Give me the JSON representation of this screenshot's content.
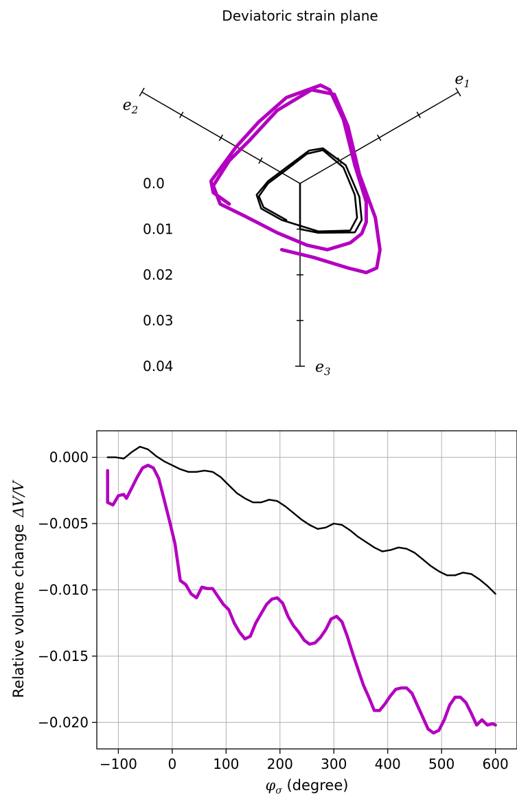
{
  "chart_data": [
    {
      "type": "line",
      "title": "Deviatoric strain plane",
      "axes": [
        {
          "name": "e1",
          "label": "e",
          "sub": "1"
        },
        {
          "name": "e2",
          "label": "e",
          "sub": "2"
        },
        {
          "name": "e3",
          "label": "e",
          "sub": "3"
        }
      ],
      "ticks": [
        "0.0",
        "0.01",
        "0.02",
        "0.03",
        "0.04"
      ],
      "series": [
        {
          "color": "#000000",
          "points": [
            [
              0.0,
              0.0
            ],
            [
              0.0,
              0.01
            ],
            [
              0.004,
              0.0108
            ],
            [
              0.012,
              0.0107
            ],
            [
              0.0135,
              0.008
            ],
            [
              0.013,
              0.003
            ],
            [
              0.01,
              -0.004
            ],
            [
              0.005,
              -0.0077
            ],
            [
              0.002,
              -0.0072
            ],
            [
              -0.003,
              -0.0035
            ],
            [
              -0.007,
              -0.0005
            ],
            [
              -0.0095,
              0.0025
            ],
            [
              -0.0085,
              0.0055
            ],
            [
              -0.004,
              0.008
            ],
            [
              0.004,
              0.0105
            ],
            [
              0.011,
              0.0103
            ],
            [
              0.0125,
              0.0075
            ],
            [
              0.012,
              0.0025
            ],
            [
              0.0095,
              -0.0035
            ],
            [
              0.005,
              -0.0073
            ],
            [
              0.0015,
              -0.0065
            ],
            [
              -0.003,
              -0.003
            ],
            [
              -0.007,
              0.0
            ],
            [
              -0.009,
              0.0028
            ],
            [
              -0.008,
              0.0052
            ],
            [
              -0.003,
              0.008
            ]
          ]
        },
        {
          "color": "#b300c0",
          "points": [
            [
              -0.0155,
              0.0045
            ],
            [
              -0.019,
              0.002
            ],
            [
              -0.0195,
              -0.0005
            ],
            [
              -0.014,
              -0.008
            ],
            [
              -0.009,
              -0.0135
            ],
            [
              -0.003,
              -0.0188
            ],
            [
              0.0045,
              -0.0215
            ],
            [
              0.0065,
              -0.0205
            ],
            [
              0.0095,
              -0.014
            ],
            [
              0.012,
              -0.004
            ],
            [
              0.0145,
              0.004
            ],
            [
              0.0145,
              0.0085
            ],
            [
              0.0135,
              0.011
            ],
            [
              0.011,
              0.013
            ],
            [
              0.006,
              0.0145
            ],
            [
              0.0015,
              0.0135
            ],
            [
              -0.005,
              0.0108
            ],
            [
              -0.012,
              0.0072
            ],
            [
              -0.0175,
              0.0045
            ],
            [
              -0.019,
              0.0005
            ],
            [
              -0.0155,
              -0.005
            ],
            [
              -0.011,
              -0.0095
            ],
            [
              -0.005,
              -0.016
            ],
            [
              0.0025,
              -0.0205
            ],
            [
              0.0075,
              -0.0195
            ],
            [
              0.0105,
              -0.0125
            ],
            [
              0.013,
              -0.002
            ],
            [
              0.0165,
              0.0075
            ],
            [
              0.0175,
              0.0145
            ],
            [
              0.0168,
              0.0185
            ],
            [
              0.0145,
              0.0195
            ],
            [
              0.0105,
              0.0185
            ],
            [
              0.003,
              0.0162
            ],
            [
              -0.004,
              0.0145
            ]
          ]
        }
      ]
    },
    {
      "type": "line",
      "title": "",
      "xlabel": "φ",
      "xlabel_sub": "σ",
      "xlabel_rest": " (degree)",
      "ylabel": "Relative volume change",
      "ylabel_math": "ΔV/V",
      "xlim": [
        -140,
        640
      ],
      "ylim": [
        -0.022,
        0.002
      ],
      "xticks": [
        -100,
        0,
        100,
        200,
        300,
        400,
        500,
        600
      ],
      "xtick_labels": [
        "−100",
        "0",
        "100",
        "200",
        "300",
        "400",
        "500",
        "600"
      ],
      "yticks": [
        0.0,
        -0.005,
        -0.01,
        -0.015,
        -0.02
      ],
      "ytick_labels": [
        "0.000",
        "−0.005",
        "−0.010",
        "−0.015",
        "−0.020"
      ],
      "grid": true,
      "series": [
        {
          "color": "#000000",
          "x": [
            -120,
            -105,
            -90,
            -75,
            -60,
            -45,
            -30,
            -15,
            0,
            15,
            30,
            45,
            60,
            75,
            90,
            105,
            120,
            135,
            150,
            165,
            180,
            195,
            210,
            225,
            240,
            255,
            270,
            285,
            300,
            315,
            330,
            345,
            360,
            375,
            390,
            405,
            420,
            435,
            450,
            465,
            480,
            495,
            510,
            525,
            540,
            555,
            570,
            585,
            600
          ],
          "y": [
            0.0,
            0.0,
            -0.0001,
            0.0004,
            0.0008,
            0.0006,
            0.0001,
            -0.0003,
            -0.0006,
            -0.0009,
            -0.0011,
            -0.0011,
            -0.001,
            -0.0011,
            -0.0015,
            -0.0021,
            -0.0027,
            -0.0031,
            -0.0034,
            -0.0034,
            -0.0032,
            -0.0033,
            -0.0037,
            -0.0042,
            -0.0047,
            -0.0051,
            -0.0054,
            -0.0053,
            -0.005,
            -0.0051,
            -0.0055,
            -0.006,
            -0.0064,
            -0.0068,
            -0.0071,
            -0.007,
            -0.0068,
            -0.0069,
            -0.0072,
            -0.0077,
            -0.0082,
            -0.0086,
            -0.0089,
            -0.0089,
            -0.0087,
            -0.0088,
            -0.0092,
            -0.0097,
            -0.0103
          ]
        },
        {
          "color": "#b300c0",
          "x": [
            -120,
            -120,
            -110,
            -100,
            -90,
            -85,
            -75,
            -65,
            -55,
            -45,
            -35,
            -25,
            -15,
            -5,
            5,
            15,
            25,
            35,
            45,
            55,
            65,
            75,
            85,
            95,
            105,
            115,
            125,
            135,
            145,
            155,
            165,
            175,
            185,
            195,
            205,
            215,
            225,
            235,
            245,
            255,
            265,
            275,
            285,
            295,
            305,
            315,
            325,
            335,
            345,
            355,
            365,
            375,
            385,
            395,
            405,
            415,
            425,
            435,
            445,
            455,
            465,
            475,
            485,
            495,
            505,
            515,
            525,
            535,
            545,
            555,
            565,
            575,
            585,
            595,
            600
          ],
          "y": [
            -0.001,
            -0.0034,
            -0.0036,
            -0.0029,
            -0.0028,
            -0.0031,
            -0.0023,
            -0.0015,
            -0.0008,
            -0.0006,
            -0.0008,
            -0.0016,
            -0.0032,
            -0.0048,
            -0.0065,
            -0.0093,
            -0.0096,
            -0.0103,
            -0.0106,
            -0.0098,
            -0.0099,
            -0.0099,
            -0.0105,
            -0.0111,
            -0.0115,
            -0.0125,
            -0.0132,
            -0.0137,
            -0.0135,
            -0.0125,
            -0.0118,
            -0.0111,
            -0.0107,
            -0.0106,
            -0.011,
            -0.012,
            -0.0127,
            -0.0132,
            -0.0138,
            -0.0141,
            -0.014,
            -0.0136,
            -0.013,
            -0.0122,
            -0.012,
            -0.0124,
            -0.0135,
            -0.0148,
            -0.016,
            -0.0172,
            -0.0181,
            -0.0191,
            -0.0191,
            -0.0186,
            -0.018,
            -0.0175,
            -0.0174,
            -0.0174,
            -0.0178,
            -0.0187,
            -0.0196,
            -0.0205,
            -0.0208,
            -0.0206,
            -0.0198,
            -0.0187,
            -0.0181,
            -0.0181,
            -0.0185,
            -0.0193,
            -0.0202,
            -0.0198,
            -0.0202,
            -0.0201,
            -0.0202
          ]
        }
      ]
    }
  ]
}
